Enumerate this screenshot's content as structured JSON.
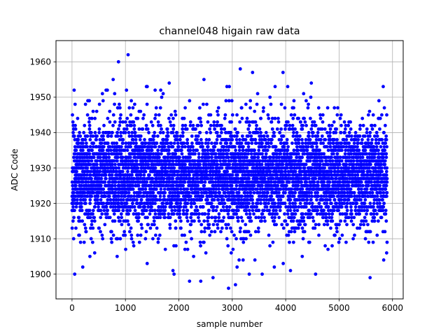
{
  "chart_data": {
    "type": "scatter",
    "title": "channel048 higain raw data",
    "xlabel": "sample number",
    "ylabel": "ADC Code",
    "xlim": [
      -300,
      6200
    ],
    "ylim": [
      1893,
      1966
    ],
    "xticks": [
      0,
      1000,
      2000,
      3000,
      4000,
      5000,
      6000
    ],
    "yticks": [
      1900,
      1910,
      1920,
      1930,
      1940,
      1950,
      1960
    ],
    "grid": true,
    "marker_color": "#0000ff",
    "n_samples": 5900,
    "distribution": {
      "mean": 1928,
      "std": 7.5,
      "min": 1896,
      "max": 1962
    },
    "notable_points": [
      {
        "x": 1050,
        "y": 1962
      },
      {
        "x": 870,
        "y": 1960
      },
      {
        "x": 3150,
        "y": 1958
      },
      {
        "x": 3950,
        "y": 1957
      },
      {
        "x": 3380,
        "y": 1957
      },
      {
        "x": 770,
        "y": 1955
      },
      {
        "x": 2470,
        "y": 1955
      },
      {
        "x": 4480,
        "y": 1954
      },
      {
        "x": 2900,
        "y": 1953
      },
      {
        "x": 40,
        "y": 1952
      },
      {
        "x": 1020,
        "y": 1952
      },
      {
        "x": 1820,
        "y": 1954
      },
      {
        "x": 30,
        "y": 1910
      },
      {
        "x": 50,
        "y": 1900
      },
      {
        "x": 1890,
        "y": 1901
      },
      {
        "x": 2200,
        "y": 1898
      },
      {
        "x": 2410,
        "y": 1898
      },
      {
        "x": 2640,
        "y": 1899
      },
      {
        "x": 2930,
        "y": 1896
      },
      {
        "x": 3060,
        "y": 1897
      },
      {
        "x": 3090,
        "y": 1902
      },
      {
        "x": 3560,
        "y": 1900
      },
      {
        "x": 4090,
        "y": 1901
      },
      {
        "x": 4560,
        "y": 1900
      },
      {
        "x": 5580,
        "y": 1899
      },
      {
        "x": 5890,
        "y": 1906
      }
    ]
  }
}
